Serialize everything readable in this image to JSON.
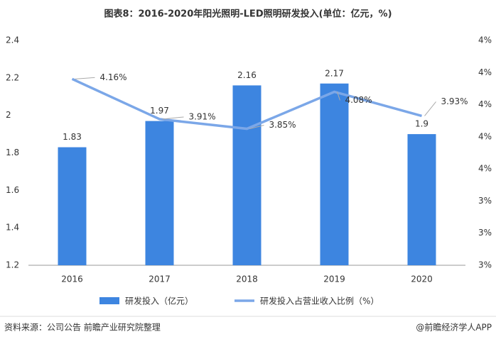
{
  "chart_data": {
    "type": "bar_line",
    "title": "图表8：2016-2020年阳光照明-LED照明研发投入(单位：亿元，%)",
    "categories": [
      "2016",
      "2017",
      "2018",
      "2019",
      "2020"
    ],
    "series": [
      {
        "name": "研发投入（亿元）",
        "type": "bar",
        "color": "#3d85e0",
        "values": [
          1.83,
          1.97,
          2.16,
          2.17,
          1.9
        ]
      },
      {
        "name": "研发投入占营业收入比例（%）",
        "type": "line",
        "axis": "y2",
        "color": "#7ba7e8",
        "values": [
          4.16,
          3.91,
          3.85,
          4.08,
          3.93
        ],
        "value_labels": [
          "4.16%",
          "3.91%",
          "3.85%",
          "4.08%",
          "3.93%"
        ]
      }
    ],
    "ylim": [
      1.2,
      2.4
    ],
    "yticks": [
      1.2,
      1.4,
      1.6,
      1.8,
      2,
      2.2,
      2.4
    ],
    "y2lim": [
      3.0,
      4.4
    ],
    "y2ticks": [
      {
        "value": 3.0,
        "label": "3%"
      },
      {
        "value": 3.2,
        "label": "3%"
      },
      {
        "value": 3.4,
        "label": "3%"
      },
      {
        "value": 3.6,
        "label": "4%"
      },
      {
        "value": 3.8,
        "label": "4%"
      },
      {
        "value": 4.0,
        "label": "4%"
      },
      {
        "value": 4.2,
        "label": "4%"
      },
      {
        "value": 4.4,
        "label": "4%"
      }
    ],
    "grid": false,
    "legend": "bottom",
    "source": "资料来源：公司公告 前瞻产业研究院整理",
    "credit": "@前瞻经济学人APP"
  }
}
